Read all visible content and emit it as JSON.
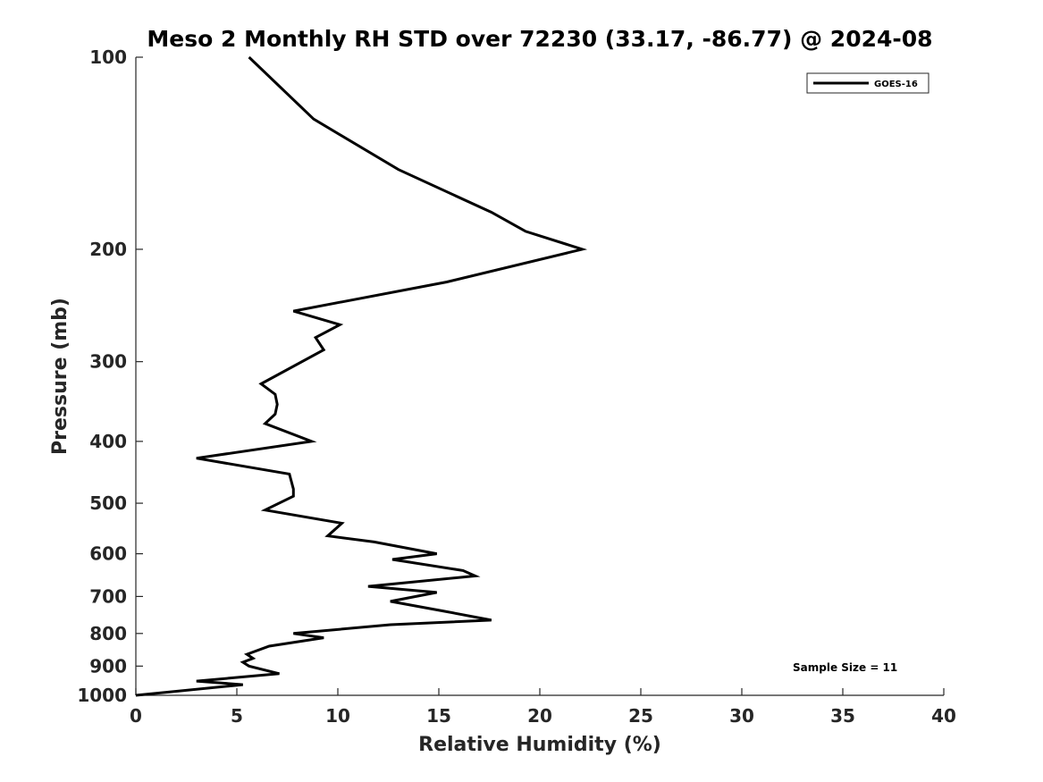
{
  "chart_data": {
    "type": "line",
    "title": "Meso 2 Monthly RH STD over 72230 (33.17, -86.77) @ 2024-08",
    "xlabel": "Relative Humidity (%)",
    "ylabel": "Pressure (mb)",
    "xlim": [
      0,
      40
    ],
    "ylim": [
      1000,
      100
    ],
    "y_scale": "log",
    "y_reversed": true,
    "x_ticks": [
      0,
      5,
      10,
      15,
      20,
      25,
      30,
      35,
      40
    ],
    "x_tick_labels": [
      "0",
      "5",
      "10",
      "15",
      "20",
      "25",
      "30",
      "35",
      "40"
    ],
    "y_ticks": [
      100,
      200,
      300,
      400,
      500,
      600,
      700,
      800,
      900,
      1000
    ],
    "y_tick_labels": [
      "100",
      "200",
      "300",
      "400",
      "500",
      "600",
      "700",
      "800",
      "900",
      "1000"
    ],
    "grid": false,
    "legend": {
      "position": "top-right",
      "entries": [
        "GOES-16"
      ]
    },
    "annotation": "Sample Size = 11",
    "series": [
      {
        "name": "GOES-16",
        "color": "#000000",
        "points": [
          [
            5.6,
            100
          ],
          [
            8.8,
            125
          ],
          [
            13.0,
            150
          ],
          [
            17.6,
            175
          ],
          [
            19.3,
            187.5
          ],
          [
            22.1,
            200
          ],
          [
            15.4,
            225
          ],
          [
            7.8,
            250
          ],
          [
            10.1,
            262.5
          ],
          [
            8.9,
            275
          ],
          [
            9.3,
            287.5
          ],
          [
            6.2,
            325
          ],
          [
            6.9,
            337.5
          ],
          [
            7.0,
            350
          ],
          [
            6.9,
            362.5
          ],
          [
            6.4,
            375
          ],
          [
            8.7,
            400
          ],
          [
            3.0,
            425
          ],
          [
            7.6,
            450
          ],
          [
            7.8,
            475
          ],
          [
            7.8,
            487.5
          ],
          [
            6.4,
            512.5
          ],
          [
            10.2,
            537.5
          ],
          [
            9.5,
            562.5
          ],
          [
            11.8,
            575
          ],
          [
            14.9,
            600
          ],
          [
            12.7,
            612.5
          ],
          [
            16.2,
            637.5
          ],
          [
            16.8,
            650
          ],
          [
            11.5,
            675
          ],
          [
            14.9,
            690
          ],
          [
            12.6,
            712.5
          ],
          [
            15.2,
            737.5
          ],
          [
            17.6,
            762.5
          ],
          [
            12.6,
            775
          ],
          [
            7.8,
            800
          ],
          [
            9.3,
            812.5
          ],
          [
            6.6,
            837.5
          ],
          [
            5.5,
            862.5
          ],
          [
            5.8,
            875
          ],
          [
            5.3,
            887.5
          ],
          [
            5.6,
            900
          ],
          [
            7.1,
            925
          ],
          [
            3.0,
            950
          ],
          [
            5.3,
            962.5
          ],
          [
            0.0,
            1000
          ]
        ]
      }
    ]
  }
}
